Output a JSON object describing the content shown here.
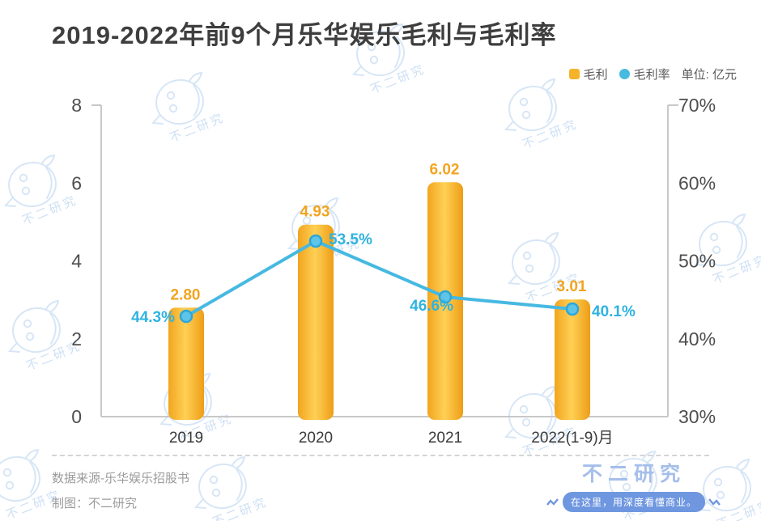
{
  "title": "2019-2022年前9个月乐华娱乐毛利与毛利率",
  "legend": {
    "series": [
      {
        "label": "毛利",
        "marker": "square",
        "color": "#F5B32A"
      },
      {
        "label": "毛利率",
        "marker": "circle",
        "color": "#49BADF"
      }
    ],
    "unit_label": "单位: 亿元"
  },
  "chart_data": {
    "type": "combo",
    "categories": [
      "2019",
      "2020",
      "2021",
      "2022(1-9)月"
    ],
    "series": [
      {
        "name": "毛利",
        "type": "bar",
        "axis": "left",
        "values": [
          2.8,
          4.93,
          6.02,
          3.01
        ],
        "labels": [
          "2.80",
          "4.93",
          "6.02",
          "3.01"
        ],
        "color": "#F7B32B"
      },
      {
        "name": "毛利率",
        "type": "line",
        "axis": "right",
        "values": [
          44.3,
          53.5,
          46.6,
          40.1
        ],
        "labels": [
          "44.3%",
          "53.5%",
          "46.6%",
          "40.1%"
        ],
        "color": "#46B9E1"
      }
    ],
    "left_axis": {
      "range": [
        0,
        8
      ],
      "ticks": [
        0,
        2,
        4,
        6,
        8
      ]
    },
    "right_axis": {
      "range": [
        30,
        70
      ],
      "ticks": [
        "30%",
        "40%",
        "50%",
        "60%",
        "70%"
      ]
    },
    "unit": "亿元",
    "grid": false,
    "legend_position": "top-right"
  },
  "footer": {
    "source": "数据来源-乐华娱乐招股书",
    "maker": "制图：不二研究",
    "brand": {
      "name": "不二研究",
      "slogan": "在这里，用深度看懂商业。"
    }
  },
  "watermark_text": "不二研究",
  "colors": {
    "title": "#3E3E3E",
    "axis_line": "#C8C8C8",
    "axis_text": "#4E4E4E",
    "bar_gradient": [
      "#F2A51F",
      "#FFD055",
      "#EE9D16"
    ],
    "bar_label": "#F2A41F",
    "line": "#46B9E1",
    "dot_fill": "#5EC4E8",
    "dot_stroke": "#2CA7D8",
    "pct_label": "#2FB3E0",
    "footer_text": "#9B9B9B",
    "brand_name": "#A5BEEA",
    "brand_pill": "#6F97E0",
    "watermark": "#CEE0F4"
  }
}
